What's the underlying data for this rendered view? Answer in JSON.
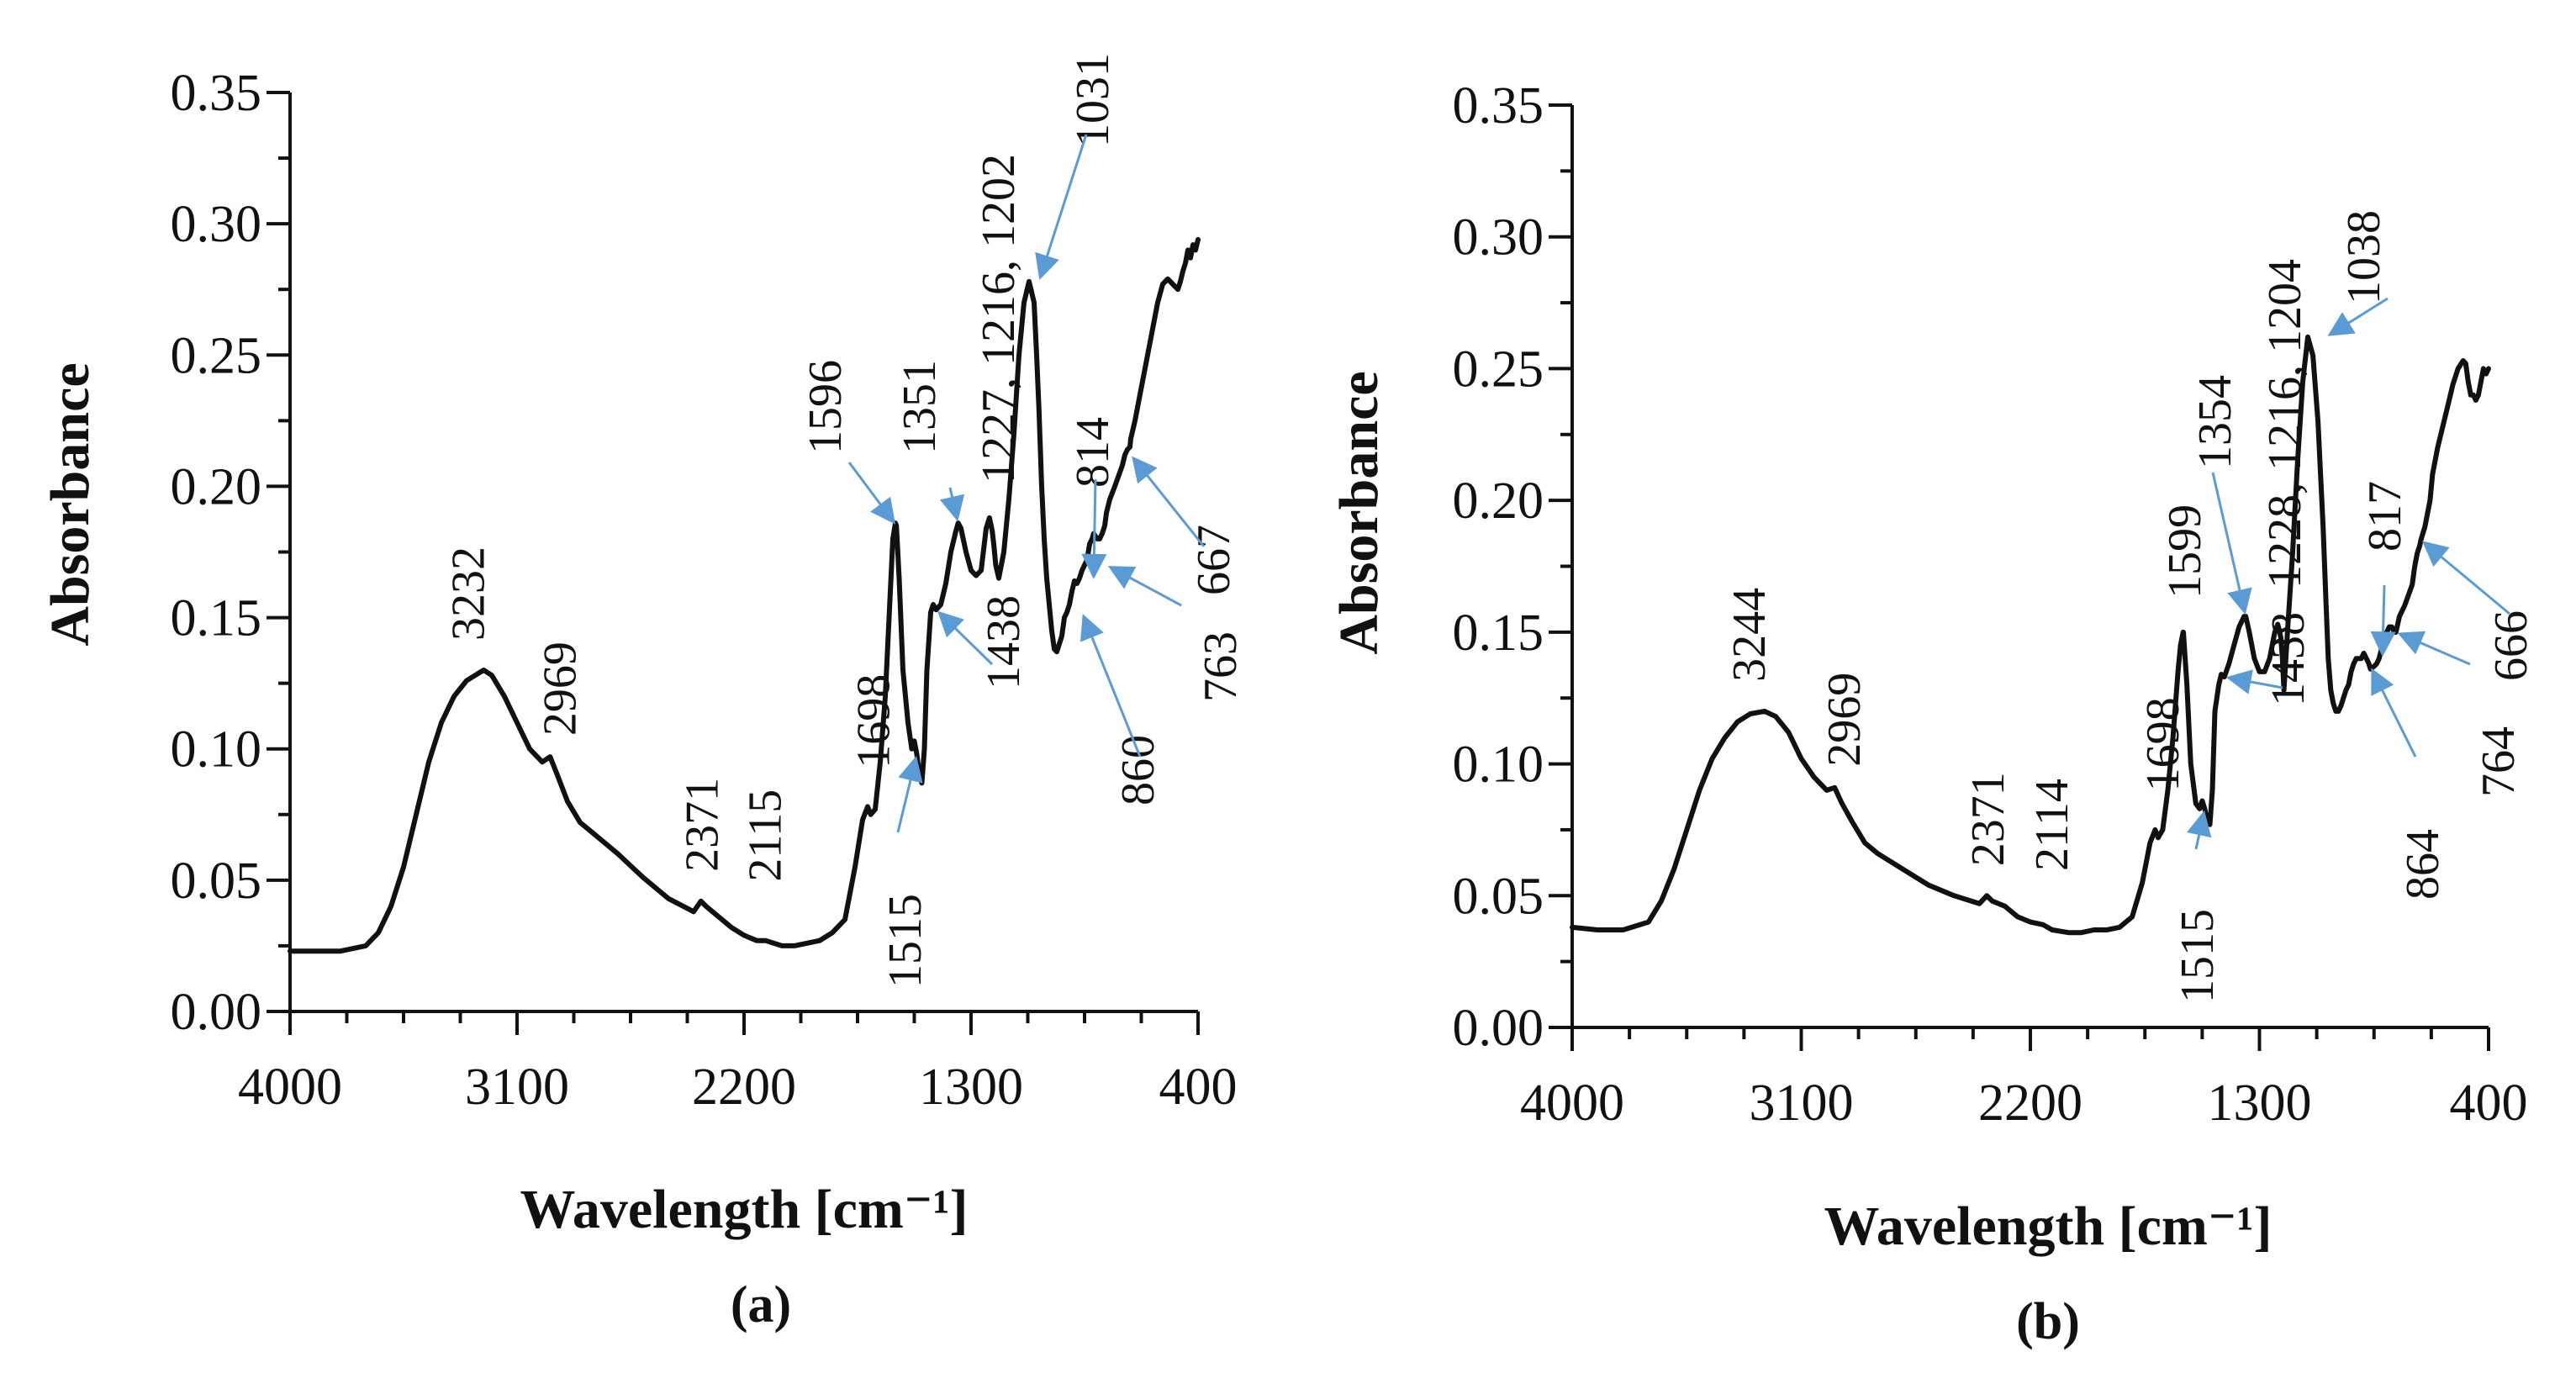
{
  "chart_data": [
    {
      "type": "line",
      "panel_label": "(a)",
      "xlabel": "Wavelength [cm⁻¹]",
      "ylabel": "Absorbance",
      "xlim": [
        4000,
        400
      ],
      "ylim": [
        0.0,
        0.35
      ],
      "x_ticks": [
        4000,
        3100,
        2200,
        1300,
        400
      ],
      "x_tick_labels": [
        "4000",
        "3100",
        "2200",
        "1300",
        "400"
      ],
      "y_ticks": [
        0.0,
        0.05,
        0.1,
        0.15,
        0.2,
        0.25,
        0.3,
        0.35
      ],
      "y_tick_labels": [
        "0.00",
        "0.05",
        "0.10",
        "0.15",
        "0.20",
        "0.25",
        "0.30",
        "0.35"
      ],
      "grid": false,
      "series": [
        {
          "name": "spectrum",
          "x": [
            4000,
            3900,
            3800,
            3700,
            3650,
            3600,
            3550,
            3500,
            3450,
            3400,
            3350,
            3300,
            3250,
            3232,
            3200,
            3150,
            3100,
            3050,
            3000,
            2969,
            2940,
            2900,
            2850,
            2800,
            2700,
            2600,
            2500,
            2400,
            2371,
            2350,
            2300,
            2250,
            2200,
            2150,
            2115,
            2050,
            2000,
            1950,
            1900,
            1850,
            1800,
            1760,
            1730,
            1710,
            1698,
            1680,
            1660,
            1640,
            1620,
            1610,
            1600,
            1596,
            1585,
            1570,
            1550,
            1535,
            1525,
            1515,
            1505,
            1495,
            1485,
            1475,
            1460,
            1450,
            1438,
            1420,
            1400,
            1380,
            1360,
            1351,
            1340,
            1320,
            1300,
            1280,
            1260,
            1240,
            1227,
            1216,
            1210,
            1202,
            1190,
            1170,
            1150,
            1130,
            1110,
            1090,
            1070,
            1050,
            1040,
            1031,
            1020,
            1010,
            1000,
            990,
            980,
            970,
            960,
            950,
            940,
            930,
            920,
            910,
            900,
            890,
            880,
            870,
            860,
            850,
            840,
            830,
            820,
            814,
            800,
            790,
            780,
            770,
            763,
            750,
            730,
            700,
            690,
            680,
            670,
            667,
            650,
            630,
            620,
            600,
            580,
            560,
            540,
            520,
            500,
            490,
            480,
            470,
            460,
            450,
            440,
            430,
            420,
            410,
            400
          ],
          "y": [
            0.023,
            0.023,
            0.023,
            0.025,
            0.03,
            0.04,
            0.055,
            0.075,
            0.095,
            0.11,
            0.12,
            0.126,
            0.129,
            0.13,
            0.128,
            0.12,
            0.11,
            0.1,
            0.095,
            0.097,
            0.09,
            0.08,
            0.072,
            0.068,
            0.06,
            0.051,
            0.043,
            0.038,
            0.042,
            0.04,
            0.036,
            0.032,
            0.029,
            0.027,
            0.027,
            0.025,
            0.025,
            0.026,
            0.027,
            0.03,
            0.035,
            0.055,
            0.073,
            0.078,
            0.075,
            0.077,
            0.095,
            0.12,
            0.16,
            0.18,
            0.186,
            0.185,
            0.165,
            0.13,
            0.11,
            0.1,
            0.103,
            0.098,
            0.09,
            0.087,
            0.1,
            0.13,
            0.152,
            0.155,
            0.153,
            0.155,
            0.163,
            0.175,
            0.183,
            0.186,
            0.184,
            0.175,
            0.168,
            0.166,
            0.168,
            0.184,
            0.188,
            0.183,
            0.178,
            0.17,
            0.165,
            0.175,
            0.195,
            0.22,
            0.25,
            0.27,
            0.278,
            0.27,
            0.25,
            0.23,
            0.2,
            0.18,
            0.165,
            0.155,
            0.145,
            0.138,
            0.137,
            0.14,
            0.143,
            0.15,
            0.152,
            0.155,
            0.16,
            0.164,
            0.163,
            0.165,
            0.168,
            0.17,
            0.172,
            0.178,
            0.18,
            0.182,
            0.18,
            0.18,
            0.182,
            0.185,
            0.19,
            0.195,
            0.2,
            0.208,
            0.212,
            0.214,
            0.215,
            0.218,
            0.225,
            0.235,
            0.24,
            0.25,
            0.26,
            0.27,
            0.277,
            0.279,
            0.277,
            0.276,
            0.275,
            0.278,
            0.282,
            0.285,
            0.29,
            0.287,
            0.292,
            0.29,
            0.294
          ]
        }
      ],
      "annotations": [
        {
          "text": "3232",
          "x": 3232,
          "y": 0.13,
          "arrow": false
        },
        {
          "text": "2969",
          "x": 2969,
          "y": 0.097,
          "arrow": false
        },
        {
          "text": "2371",
          "x": 2371,
          "y": 0.042,
          "arrow": false
        },
        {
          "text": "2115",
          "x": 2115,
          "y": 0.027,
          "arrow": false
        },
        {
          "text": "1698",
          "x": 1698,
          "y": 0.075,
          "arrow": false
        },
        {
          "text": "1596",
          "x": 1596,
          "y": 0.185,
          "arrow": true
        },
        {
          "text": "1515",
          "x": 1515,
          "y": 0.098,
          "arrow": true
        },
        {
          "text": "1438",
          "x": 1438,
          "y": 0.153,
          "arrow": true
        },
        {
          "text": "1351",
          "x": 1351,
          "y": 0.186,
          "arrow": true
        },
        {
          "text": "1227, 1216, 1202",
          "x": 1216,
          "y": 0.188,
          "arrow": false
        },
        {
          "text": "1031",
          "x": 1031,
          "y": 0.278,
          "arrow": true
        },
        {
          "text": "860",
          "x": 860,
          "y": 0.152,
          "arrow": true
        },
        {
          "text": "814",
          "x": 814,
          "y": 0.164,
          "arrow": true
        },
        {
          "text": "763",
          "x": 763,
          "y": 0.17,
          "arrow": true
        },
        {
          "text": "667",
          "x": 667,
          "y": 0.212,
          "arrow": true
        }
      ]
    },
    {
      "type": "line",
      "panel_label": "(b)",
      "xlabel": "Wavelength [cm⁻¹]",
      "ylabel": "Absorbance",
      "xlim": [
        4000,
        400
      ],
      "ylim": [
        0.0,
        0.35
      ],
      "x_ticks": [
        4000,
        3100,
        2200,
        1300,
        400
      ],
      "x_tick_labels": [
        "4000",
        "3100",
        "2200",
        "1300",
        "400"
      ],
      "y_ticks": [
        0.0,
        0.05,
        0.1,
        0.15,
        0.2,
        0.25,
        0.3,
        0.35
      ],
      "y_tick_labels": [
        "0.00",
        "0.05",
        "0.10",
        "0.15",
        "0.20",
        "0.25",
        "0.30",
        "0.35"
      ],
      "grid": false,
      "series": [
        {
          "name": "spectrum",
          "x": [
            4000,
            3900,
            3800,
            3700,
            3650,
            3600,
            3550,
            3500,
            3450,
            3400,
            3350,
            3300,
            3244,
            3200,
            3150,
            3100,
            3050,
            3000,
            2969,
            2940,
            2900,
            2850,
            2800,
            2700,
            2600,
            2500,
            2400,
            2371,
            2350,
            2300,
            2250,
            2200,
            2150,
            2114,
            2050,
            2000,
            1950,
            1900,
            1850,
            1800,
            1760,
            1730,
            1710,
            1698,
            1680,
            1660,
            1640,
            1620,
            1610,
            1600,
            1599,
            1585,
            1570,
            1550,
            1535,
            1525,
            1515,
            1505,
            1495,
            1485,
            1475,
            1460,
            1450,
            1438,
            1420,
            1400,
            1380,
            1360,
            1354,
            1340,
            1320,
            1300,
            1280,
            1260,
            1240,
            1228,
            1216,
            1210,
            1204,
            1190,
            1170,
            1150,
            1130,
            1110,
            1090,
            1070,
            1050,
            1038,
            1030,
            1020,
            1010,
            1000,
            990,
            980,
            970,
            960,
            950,
            940,
            930,
            920,
            910,
            900,
            890,
            880,
            870,
            864,
            850,
            840,
            830,
            817,
            800,
            790,
            780,
            770,
            764,
            750,
            730,
            700,
            690,
            680,
            670,
            666,
            650,
            630,
            620,
            600,
            580,
            560,
            540,
            520,
            500,
            490,
            480,
            470,
            460,
            450,
            440,
            430,
            420,
            410,
            400
          ],
          "y": [
            0.038,
            0.037,
            0.037,
            0.04,
            0.048,
            0.06,
            0.075,
            0.09,
            0.102,
            0.11,
            0.116,
            0.119,
            0.12,
            0.118,
            0.112,
            0.102,
            0.095,
            0.09,
            0.091,
            0.085,
            0.078,
            0.07,
            0.066,
            0.06,
            0.054,
            0.05,
            0.047,
            0.05,
            0.048,
            0.046,
            0.042,
            0.04,
            0.039,
            0.037,
            0.036,
            0.036,
            0.037,
            0.037,
            0.038,
            0.042,
            0.055,
            0.07,
            0.075,
            0.072,
            0.075,
            0.09,
            0.11,
            0.135,
            0.145,
            0.15,
            0.15,
            0.13,
            0.1,
            0.085,
            0.083,
            0.086,
            0.083,
            0.078,
            0.077,
            0.09,
            0.12,
            0.13,
            0.134,
            0.133,
            0.138,
            0.145,
            0.152,
            0.156,
            0.156,
            0.15,
            0.14,
            0.135,
            0.135,
            0.14,
            0.15,
            0.153,
            0.148,
            0.14,
            0.128,
            0.15,
            0.18,
            0.215,
            0.245,
            0.262,
            0.255,
            0.23,
            0.19,
            0.16,
            0.14,
            0.128,
            0.123,
            0.12,
            0.12,
            0.122,
            0.125,
            0.128,
            0.13,
            0.135,
            0.138,
            0.14,
            0.14,
            0.14,
            0.142,
            0.14,
            0.138,
            0.136,
            0.137,
            0.138,
            0.14,
            0.145,
            0.15,
            0.152,
            0.152,
            0.15,
            0.15,
            0.156,
            0.16,
            0.168,
            0.175,
            0.18,
            0.183,
            0.185,
            0.19,
            0.2,
            0.21,
            0.22,
            0.228,
            0.236,
            0.244,
            0.25,
            0.253,
            0.252,
            0.245,
            0.24,
            0.24,
            0.238,
            0.24,
            0.245,
            0.25,
            0.248,
            0.25
          ]
        }
      ],
      "annotations": [
        {
          "text": "3244",
          "x": 3244,
          "y": 0.12,
          "arrow": false
        },
        {
          "text": "2969",
          "x": 2969,
          "y": 0.091,
          "arrow": false
        },
        {
          "text": "2371",
          "x": 2371,
          "y": 0.05,
          "arrow": false
        },
        {
          "text": "2114",
          "x": 2114,
          "y": 0.037,
          "arrow": false
        },
        {
          "text": "1698",
          "x": 1698,
          "y": 0.072,
          "arrow": false
        },
        {
          "text": "1599",
          "x": 1599,
          "y": 0.15,
          "arrow": false
        },
        {
          "text": "1515",
          "x": 1515,
          "y": 0.083,
          "arrow": true
        },
        {
          "text": "1438",
          "x": 1438,
          "y": 0.133,
          "arrow": true
        },
        {
          "text": "1354",
          "x": 1354,
          "y": 0.156,
          "arrow": true
        },
        {
          "text": "1228, 1216, 1204",
          "x": 1216,
          "y": 0.153,
          "arrow": false
        },
        {
          "text": "1038",
          "x": 1038,
          "y": 0.262,
          "arrow": true
        },
        {
          "text": "864",
          "x": 864,
          "y": 0.137,
          "arrow": true
        },
        {
          "text": "817",
          "x": 817,
          "y": 0.14,
          "arrow": true
        },
        {
          "text": "764",
          "x": 764,
          "y": 0.15,
          "arrow": true
        },
        {
          "text": "666",
          "x": 666,
          "y": 0.185,
          "arrow": true
        }
      ]
    }
  ]
}
